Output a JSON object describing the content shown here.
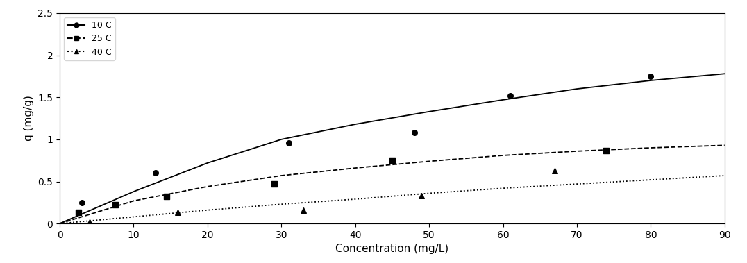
{
  "chart_data": {
    "type": "scatter",
    "x_label": "Concentration (mg/L)",
    "y_label": "q (mg/g)",
    "xlim": [
      0,
      90
    ],
    "xticks": [
      0,
      10,
      20,
      30,
      40,
      50,
      60,
      70,
      80,
      90
    ],
    "ylim": [
      0,
      2.5
    ],
    "yticks": [
      0,
      0.5,
      1,
      1.5,
      2,
      2.5
    ],
    "grid": false,
    "legend": "upper left",
    "series": [
      {
        "name": "10 C",
        "color": "#000000",
        "marker": "circle",
        "line_style": "solid",
        "x": [
          3,
          13,
          31,
          48,
          61,
          80
        ],
        "values": [
          0.25,
          0.6,
          0.96,
          1.08,
          1.52,
          1.75
        ],
        "fit": {
          "x": [
            0,
            10,
            20,
            30,
            40,
            50,
            60,
            70,
            80,
            90
          ],
          "values": [
            0,
            0.38,
            0.72,
            1.0,
            1.18,
            1.33,
            1.47,
            1.6,
            1.7,
            1.78
          ]
        }
      },
      {
        "name": "25 C",
        "color": "#000000",
        "marker": "square",
        "line_style": "dashed",
        "x": [
          2.5,
          7.5,
          14.5,
          29,
          45,
          74
        ],
        "values": [
          0.13,
          0.22,
          0.32,
          0.47,
          0.75,
          0.87
        ],
        "fit": {
          "x": [
            0,
            10,
            20,
            30,
            40,
            50,
            60,
            70,
            80,
            90
          ],
          "values": [
            0,
            0.27,
            0.44,
            0.57,
            0.66,
            0.74,
            0.81,
            0.86,
            0.9,
            0.93
          ]
        }
      },
      {
        "name": "40 C",
        "color": "#000000",
        "marker": "triangle",
        "line_style": "dotted",
        "x": [
          4,
          16,
          33,
          49,
          67
        ],
        "values": [
          0.02,
          0.13,
          0.16,
          0.33,
          0.63
        ],
        "fit": {
          "x": [
            0,
            10,
            20,
            30,
            40,
            50,
            60,
            70,
            80,
            90
          ],
          "values": [
            0,
            0.08,
            0.16,
            0.23,
            0.29,
            0.36,
            0.42,
            0.47,
            0.52,
            0.57
          ]
        }
      }
    ]
  }
}
